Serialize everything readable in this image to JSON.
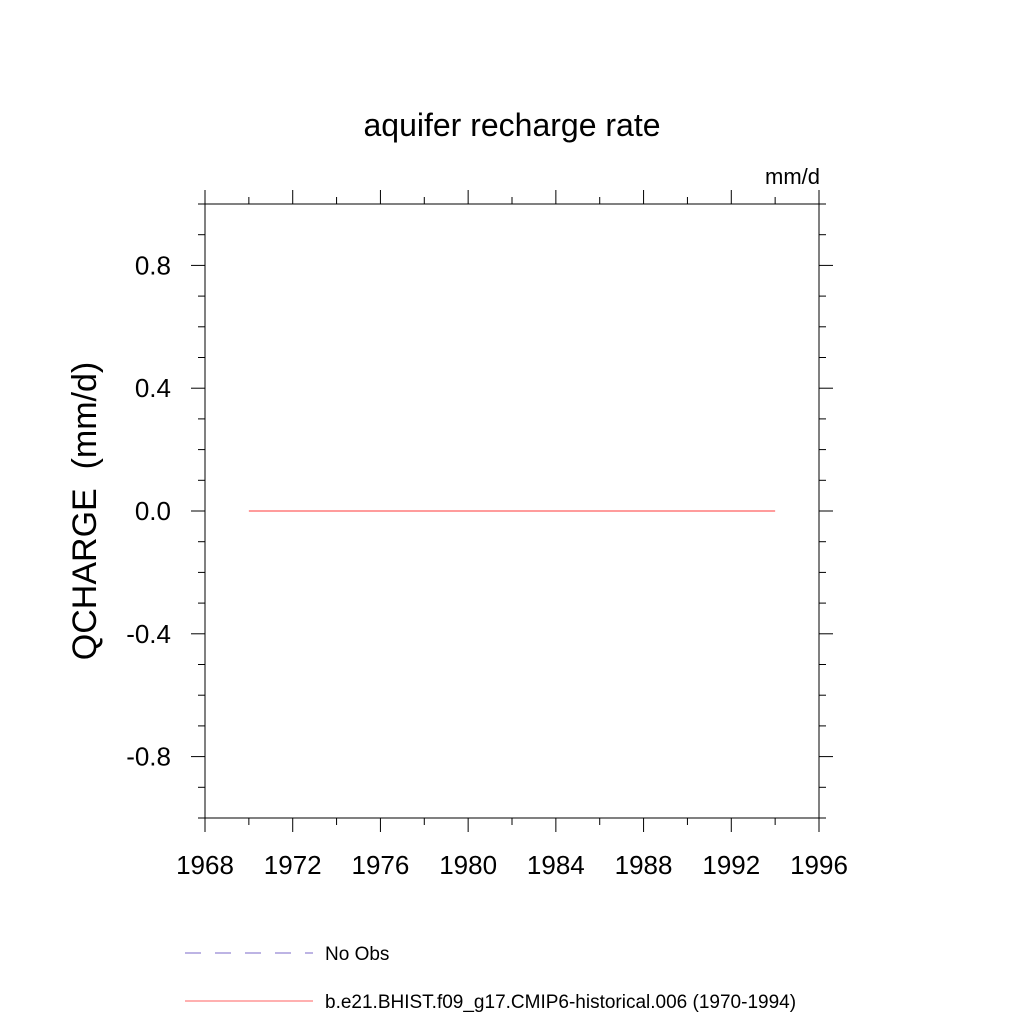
{
  "chart_data": {
    "type": "line",
    "title": "aquifer recharge rate",
    "units_label": "mm/d",
    "ylabel": "QCHARGE  (mm/d)",
    "xlabel": "",
    "xlim": [
      1968,
      1996
    ],
    "ylim": [
      -1.0,
      1.0
    ],
    "x_ticks": [
      1968,
      1972,
      1976,
      1980,
      1984,
      1988,
      1992,
      1996
    ],
    "x_minor_step": 2,
    "y_ticks": [
      -0.8,
      -0.4,
      0.0,
      0.4,
      0.8
    ],
    "y_tick_labels": [
      "-0.8",
      "-0.4",
      "0.0",
      "0.4",
      "0.8"
    ],
    "y_minor_step": 0.1,
    "grid": false,
    "legend_position": "bottom-left, below plot",
    "series": [
      {
        "name": "No Obs",
        "color": "#7b68c8",
        "dash": "dashed",
        "x": [],
        "y": []
      },
      {
        "name": "b.e21.BHIST.f09_g17.CMIP6-historical.006 (1970-1994)",
        "color": "#ff6060",
        "dash": "solid",
        "x": [
          1970,
          1994
        ],
        "y": [
          0.0,
          0.0
        ]
      }
    ]
  }
}
